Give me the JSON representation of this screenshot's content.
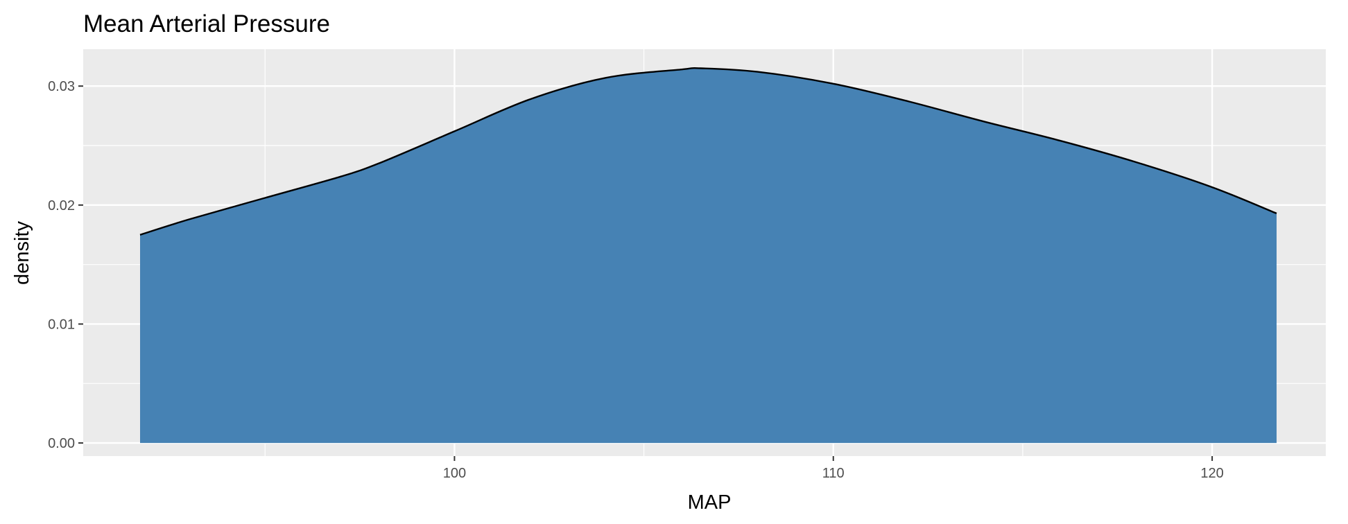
{
  "chart_data": {
    "type": "area",
    "title": "Mean Arterial Pressure",
    "xlabel": "MAP",
    "ylabel": "density",
    "xlim": [
      90.2,
      123.0
    ],
    "ylim": [
      -0.0011,
      0.0331
    ],
    "x_ticks": [
      100,
      110,
      120
    ],
    "x_tick_labels": [
      "100",
      "110",
      "120"
    ],
    "y_ticks": [
      0.0,
      0.01,
      0.02,
      0.03
    ],
    "y_tick_labels": [
      "0.00",
      "0.01",
      "0.02",
      "0.03"
    ],
    "grid": true,
    "legend": "none",
    "series": [
      {
        "x": [
          91.7,
          93,
          95,
          97,
          98,
          100,
          102,
          104,
          106,
          106.5,
          108,
          110,
          112,
          114,
          116,
          118,
          120,
          121.7
        ],
        "y": [
          0.0175,
          0.0188,
          0.0206,
          0.0224,
          0.0235,
          0.0262,
          0.0289,
          0.0307,
          0.0314,
          0.0315,
          0.0312,
          0.0302,
          0.0287,
          0.027,
          0.0254,
          0.0236,
          0.0215,
          0.0193
        ],
        "fill": "#4682b4",
        "stroke": "#000000"
      }
    ],
    "panel_background": "#ebebeb",
    "grid_color": "#ffffff"
  }
}
